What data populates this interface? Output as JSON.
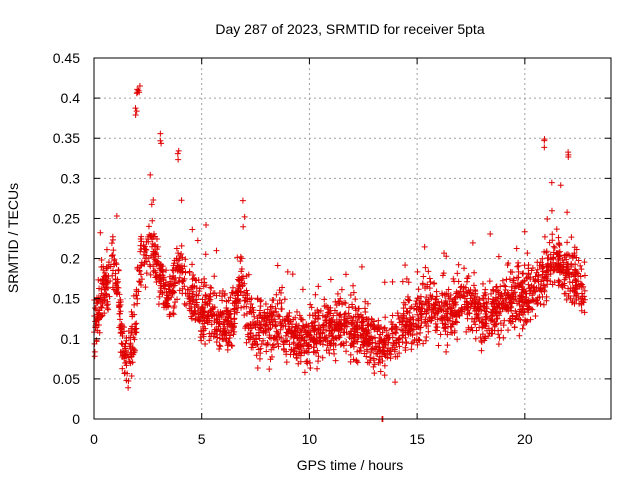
{
  "chart_data": {
    "type": "scatter",
    "title": "Day 287 of 2023, SRMTID for receiver 5pta",
    "xlabel": "GPS time / hours",
    "ylabel": "SRMTID / TECUs",
    "xlim": [
      0,
      24
    ],
    "ylim": [
      0,
      0.45
    ],
    "xticks": [
      "0",
      "5",
      "10",
      "15",
      "20"
    ],
    "yticks": [
      "0",
      "0.05",
      "0.1",
      "0.15",
      "0.2",
      "0.25",
      "0.3",
      "0.35",
      "0.4",
      "0.45"
    ],
    "grid": true,
    "marker": "+",
    "color": "#e00000",
    "trend": [
      [
        0.0,
        0.11
      ],
      [
        0.3,
        0.15
      ],
      [
        0.6,
        0.17
      ],
      [
        0.9,
        0.19
      ],
      [
        1.1,
        0.17
      ],
      [
        1.3,
        0.09
      ],
      [
        1.6,
        0.08
      ],
      [
        1.9,
        0.1
      ],
      [
        2.1,
        0.2
      ],
      [
        2.4,
        0.21
      ],
      [
        2.7,
        0.21
      ],
      [
        3.0,
        0.19
      ],
      [
        3.3,
        0.15
      ],
      [
        3.6,
        0.16
      ],
      [
        3.9,
        0.19
      ],
      [
        4.2,
        0.17
      ],
      [
        4.6,
        0.15
      ],
      [
        5.0,
        0.13
      ],
      [
        5.4,
        0.14
      ],
      [
        5.8,
        0.12
      ],
      [
        6.2,
        0.12
      ],
      [
        6.6,
        0.14
      ],
      [
        6.9,
        0.18
      ],
      [
        7.2,
        0.12
      ],
      [
        7.6,
        0.11
      ],
      [
        8.0,
        0.11
      ],
      [
        8.5,
        0.12
      ],
      [
        9.0,
        0.11
      ],
      [
        9.5,
        0.1
      ],
      [
        10.0,
        0.1
      ],
      [
        10.5,
        0.11
      ],
      [
        11.0,
        0.11
      ],
      [
        11.5,
        0.12
      ],
      [
        12.0,
        0.11
      ],
      [
        12.5,
        0.11
      ],
      [
        13.0,
        0.1
      ],
      [
        13.5,
        0.09
      ],
      [
        14.0,
        0.1
      ],
      [
        14.5,
        0.12
      ],
      [
        15.0,
        0.13
      ],
      [
        15.5,
        0.14
      ],
      [
        16.0,
        0.13
      ],
      [
        16.5,
        0.13
      ],
      [
        17.0,
        0.14
      ],
      [
        17.5,
        0.15
      ],
      [
        18.0,
        0.13
      ],
      [
        18.5,
        0.13
      ],
      [
        19.0,
        0.14
      ],
      [
        19.5,
        0.15
      ],
      [
        20.0,
        0.15
      ],
      [
        20.5,
        0.17
      ],
      [
        21.0,
        0.18
      ],
      [
        21.5,
        0.2
      ],
      [
        22.0,
        0.18
      ],
      [
        22.5,
        0.17
      ],
      [
        22.8,
        0.15
      ]
    ],
    "peaks": [
      {
        "x": 2.0,
        "y": 0.425
      },
      {
        "x": 2.1,
        "y": 0.42
      },
      {
        "x": 1.95,
        "y": 0.39
      },
      {
        "x": 3.1,
        "y": 0.36
      },
      {
        "x": 3.9,
        "y": 0.335
      },
      {
        "x": 20.9,
        "y": 0.358
      },
      {
        "x": 22.0,
        "y": 0.335
      },
      {
        "x": 13.4,
        "y": 0.0
      }
    ],
    "point_count": 2600
  }
}
